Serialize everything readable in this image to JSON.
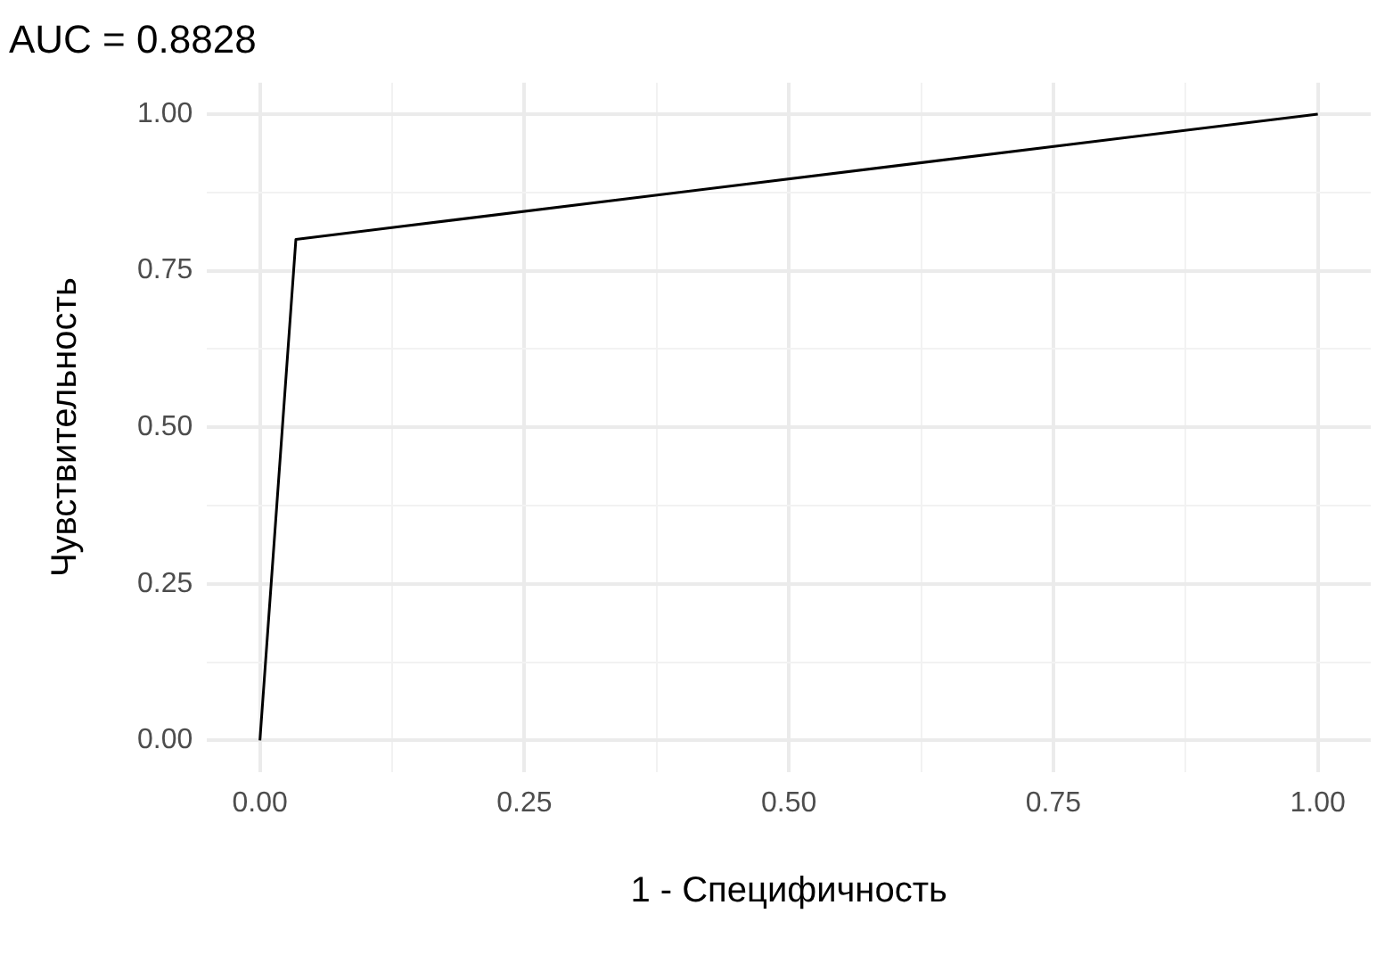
{
  "chart_data": {
    "type": "line",
    "title": "AUC = 0.8828",
    "xlabel": "1 - Специфичность",
    "ylabel": "Чувствительность",
    "x": [
      0,
      0.034,
      1
    ],
    "series": [
      {
        "color": "#000000",
        "values": [
          0,
          0.8,
          1
        ]
      }
    ],
    "xlim": [
      -0.05,
      1.05
    ],
    "ylim": [
      -0.05,
      1.05
    ],
    "xticks": [
      "0.00",
      {
        "value": 0.125,
        "label": null
      },
      {
        "value": 0.25,
        "label": "0.25"
      },
      {
        "value": 0.375,
        "label": null
      },
      {
        "value": 0.5,
        "label": "0.50"
      },
      {
        "value": 0.625,
        "label": null
      },
      {
        "value": 0.75,
        "label": "0.75"
      },
      {
        "value": 0.875,
        "label": null
      },
      {
        "value": 1,
        "label": "1.00"
      }
    ],
    "yticks": [
      {
        "value": 0,
        "label": "0.00"
      },
      {
        "value": 0.125,
        "label": null
      },
      {
        "value": 0.25,
        "label": "0.25"
      },
      {
        "value": 0.375,
        "label": null
      },
      {
        "value": 0.5,
        "label": "0.50"
      },
      {
        "value": 0.625,
        "label": null
      },
      {
        "value": 0.75,
        "label": "0.75"
      },
      {
        "value": 0.875,
        "label": null
      },
      {
        "value": 1,
        "label": "1.00"
      }
    ],
    "grid": true,
    "marker": "none",
    "line_style": "solid"
  }
}
